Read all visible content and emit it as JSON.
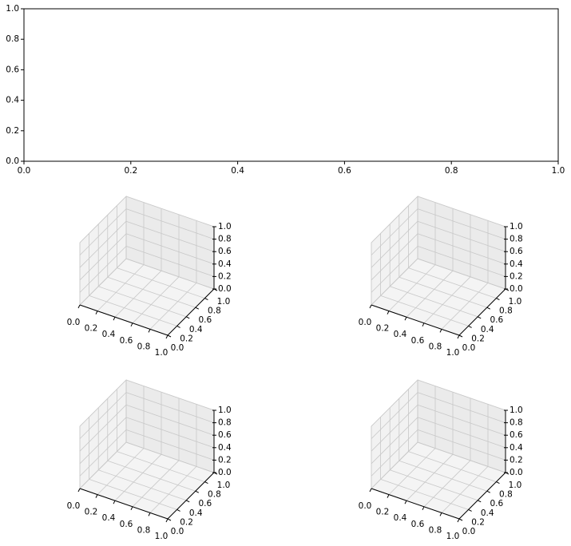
{
  "chart_data": [
    {
      "type": "axes2d",
      "xlim": [
        0,
        1
      ],
      "ylim": [
        0,
        1
      ],
      "xticks": [
        {
          "value": 0,
          "label": "0.0"
        },
        0.2,
        0.4,
        0.6,
        0.8,
        {
          "value": 1,
          "label": "1.0"
        }
      ],
      "yticks": [
        {
          "value": 0,
          "label": "0.0"
        },
        0.2,
        0.4,
        0.6,
        0.8,
        {
          "value": 1,
          "label": "1.0"
        }
      ]
    },
    {
      "type": "axes3d",
      "xlim": [
        0,
        1
      ],
      "ylim": [
        0,
        1
      ],
      "zlim": [
        0,
        1
      ],
      "grid": true,
      "xticks": [
        {
          "value": 0,
          "label": "0.0"
        },
        0.2,
        0.4,
        0.6,
        0.8,
        {
          "value": 1,
          "label": "1.0"
        }
      ],
      "yticks": [
        {
          "value": 0,
          "label": "0.0"
        },
        0.2,
        0.4,
        0.6,
        0.8,
        {
          "value": 1,
          "label": "1.0"
        }
      ],
      "zticks": [
        {
          "value": 0,
          "label": "0.0"
        },
        0.2,
        0.4,
        0.6,
        0.8,
        {
          "value": 1,
          "label": "1.0"
        }
      ]
    },
    {
      "type": "axes3d",
      "xlim": [
        0,
        1
      ],
      "ylim": [
        0,
        1
      ],
      "zlim": [
        0,
        1
      ],
      "grid": true,
      "xticks": [
        {
          "value": 0,
          "label": "0.0"
        },
        0.2,
        0.4,
        0.6,
        0.8,
        {
          "value": 1,
          "label": "1.0"
        }
      ],
      "yticks": [
        {
          "value": 0,
          "label": "0.0"
        },
        0.2,
        0.4,
        0.6,
        0.8,
        {
          "value": 1,
          "label": "1.0"
        }
      ],
      "zticks": [
        {
          "value": 0,
          "label": "0.0"
        },
        0.2,
        0.4,
        0.6,
        0.8,
        {
          "value": 1,
          "label": "1.0"
        }
      ]
    },
    {
      "type": "axes3d",
      "xlim": [
        0,
        1
      ],
      "ylim": [
        0,
        1
      ],
      "zlim": [
        0,
        1
      ],
      "grid": true,
      "xticks": [
        {
          "value": 0,
          "label": "0.0"
        },
        0.2,
        0.4,
        0.6,
        0.8,
        {
          "value": 1,
          "label": "1.0"
        }
      ],
      "yticks": [
        {
          "value": 0,
          "label": "0.0"
        },
        0.2,
        0.4,
        0.6,
        0.8,
        {
          "value": 1,
          "label": "1.0"
        }
      ],
      "zticks": [
        {
          "value": 0,
          "label": "0.0"
        },
        0.2,
        0.4,
        0.6,
        0.8,
        {
          "value": 1,
          "label": "1.0"
        }
      ]
    },
    {
      "type": "axes3d",
      "xlim": [
        0,
        1
      ],
      "ylim": [
        0,
        1
      ],
      "zlim": [
        0,
        1
      ],
      "grid": true,
      "xticks": [
        {
          "value": 0,
          "label": "0.0"
        },
        0.2,
        0.4,
        0.6,
        0.8,
        {
          "value": 1,
          "label": "1.0"
        }
      ],
      "yticks": [
        {
          "value": 0,
          "label": "0.0"
        },
        0.2,
        0.4,
        0.6,
        0.8,
        {
          "value": 1,
          "label": "1.0"
        }
      ],
      "zticks": [
        {
          "value": 0,
          "label": "0.0"
        },
        0.2,
        0.4,
        0.6,
        0.8,
        {
          "value": 1,
          "label": "1.0"
        }
      ]
    }
  ]
}
